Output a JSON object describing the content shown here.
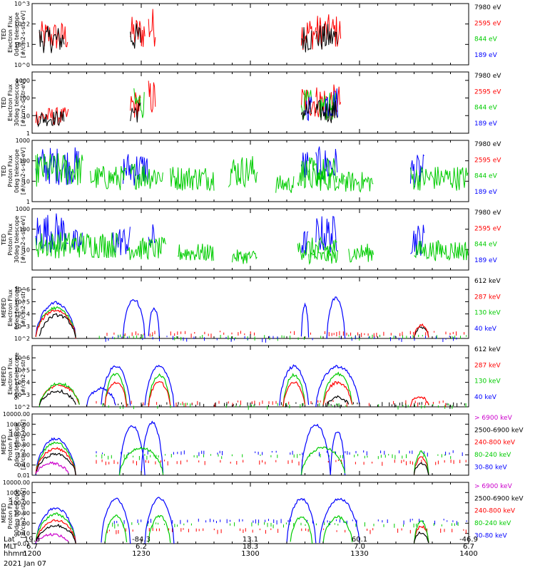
{
  "chart_data": [
    {
      "type": "line",
      "ylabel_lines": [
        "TED",
        "Electron Flux",
        "0deg telescope",
        "[#/cm2-s-str-eV]"
      ],
      "yscale": "log",
      "ylim": [
        1,
        1000
      ],
      "yticks": [
        "10^0",
        "10^1",
        "10^2",
        "10^3"
      ],
      "legend_right": [
        {
          "text": "7980 eV",
          "color": "#000000"
        },
        {
          "text": "2595 eV",
          "color": "#ff0000"
        },
        {
          "text": "844 eV",
          "color": "#00cc00"
        },
        {
          "text": "189 eV",
          "color": "#0000ff"
        }
      ],
      "series": [
        {
          "color": "#ff0000",
          "bursts": [
            [
              1202,
              1210,
              140
            ],
            [
              1227,
              1231,
              250
            ],
            [
              1232,
              1234,
              700
            ],
            [
              1314,
              1318,
              250
            ],
            [
              1318,
              1325,
              300
            ]
          ]
        },
        {
          "color": "#000000",
          "bursts": [
            [
              1202,
              1209,
              80
            ],
            [
              1227,
              1230,
              120
            ],
            [
              1314,
              1317,
              100
            ],
            [
              1318,
              1324,
              110
            ]
          ]
        }
      ]
    },
    {
      "type": "line",
      "ylabel_lines": [
        "TED",
        "Electron Flux",
        "30deg telescope",
        "[#/cm2-s-str-eV]"
      ],
      "yscale": "log",
      "ylim": [
        1,
        3000
      ],
      "yticks": [
        "1",
        "10",
        "100",
        "1000"
      ],
      "legend_right": [
        {
          "text": "7980 eV",
          "color": "#000000"
        },
        {
          "text": "2595 eV",
          "color": "#ff0000"
        },
        {
          "text": "844 eV",
          "color": "#00cc00"
        },
        {
          "text": "189 eV",
          "color": "#0000ff"
        }
      ],
      "series": [
        {
          "color": "#ff0000",
          "bursts": [
            [
              1201,
              1210,
              30
            ],
            [
              1227,
              1230,
              300
            ],
            [
              1232,
              1234,
              1200
            ],
            [
              1314,
              1318,
              600
            ],
            [
              1318,
              1325,
              600
            ]
          ]
        },
        {
          "color": "#00cc00",
          "bursts": [
            [
              1228,
              1231,
              400
            ],
            [
              1314,
              1317,
              300
            ],
            [
              1319,
              1324,
              200
            ]
          ]
        },
        {
          "color": "#0000ff",
          "bursts": [
            [
              1315,
              1317,
              200
            ],
            [
              1320,
              1324,
              500
            ]
          ]
        },
        {
          "color": "#000000",
          "bursts": [
            [
              1201,
              1209,
              20
            ],
            [
              1227,
              1230,
              80
            ],
            [
              1314,
              1317,
              80
            ],
            [
              1318,
              1324,
              80
            ]
          ]
        }
      ]
    },
    {
      "type": "line",
      "ylabel_lines": [
        "TED",
        "Proton Flux",
        "0deg telescope",
        "[#/cm2-s-str-eV]"
      ],
      "yscale": "log",
      "ylim": [
        1,
        1000
      ],
      "yticks": [
        "1",
        "10",
        "100",
        "1000"
      ],
      "legend_right": [
        {
          "text": "7980 eV",
          "color": "#000000"
        },
        {
          "text": "2595 eV",
          "color": "#ff0000"
        },
        {
          "text": "844 eV",
          "color": "#00cc00"
        },
        {
          "text": "189 eV",
          "color": "#0000ff"
        }
      ],
      "series": [
        {
          "color": "#0000ff",
          "bursts": [
            [
              1201,
              1213,
              500
            ],
            [
              1225,
              1232,
              300
            ],
            [
              1314,
              1316,
              400
            ],
            [
              1318,
              1324,
              500
            ],
            [
              1344,
              1348,
              200
            ]
          ]
        },
        {
          "color": "#00cc00",
          "bursts": [
            [
              1201,
              1214,
              250
            ],
            [
              1216,
              1226,
              60
            ],
            [
              1227,
              1236,
              100
            ],
            [
              1238,
              1250,
              60
            ],
            [
              1254,
              1262,
              200
            ],
            [
              1267,
              1272,
              20
            ],
            [
              1276,
              1286,
              50
            ],
            [
              1313,
              1324,
              150
            ],
            [
              1326,
              1334,
              30
            ],
            [
              1344,
              1360,
              60
            ]
          ]
        }
      ]
    },
    {
      "type": "line",
      "ylabel_lines": [
        "TED",
        "Proton Flux",
        "30deg telescope",
        "[#/cm2-s-str-eV]"
      ],
      "yscale": "log",
      "ylim": [
        1,
        1000
      ],
      "yticks": [
        "10",
        "100",
        "1000"
      ],
      "legend_right": [
        {
          "text": "7980 eV",
          "color": "#000000"
        },
        {
          "text": "2595 eV",
          "color": "#ff0000"
        },
        {
          "text": "844 eV",
          "color": "#00cc00"
        },
        {
          "text": "189 eV",
          "color": "#0000ff"
        }
      ],
      "series": [
        {
          "color": "#0000ff",
          "bursts": [
            [
              1201,
              1210,
              700
            ],
            [
              1211,
              1214,
              100
            ],
            [
              1222,
              1227,
              150
            ],
            [
              1232,
              1234,
              200
            ],
            [
              1314,
              1316,
              100
            ],
            [
              1318,
              1324,
              500
            ],
            [
              1344,
              1348,
              200
            ]
          ]
        },
        {
          "color": "#00cc00",
          "bursts": [
            [
              1201,
              1224,
              80
            ],
            [
              1226,
              1237,
              40
            ],
            [
              1240,
              1250,
              20
            ],
            [
              1255,
              1262,
              10
            ],
            [
              1276,
              1284,
              10
            ],
            [
              1313,
              1324,
              40
            ],
            [
              1327,
              1334,
              20
            ],
            [
              1345,
              1360,
              30
            ]
          ]
        }
      ]
    },
    {
      "type": "line",
      "ylabel_lines": [
        "MEPED",
        "Electron Flux",
        "0deg telescope",
        "[#/cm2-s-str]"
      ],
      "yscale": "log",
      "ylim": [
        100,
        10000000
      ],
      "yticks": [
        "10^2",
        "10^3",
        "10^4",
        "10^5",
        "10^6"
      ],
      "legend_right": [
        {
          "text": "612 keV",
          "color": "#000000"
        },
        {
          "text": "287 keV",
          "color": "#ff0000"
        },
        {
          "text": "130 keV",
          "color": "#00cc00"
        },
        {
          "text": "40 keV",
          "color": "#0000ff"
        }
      ],
      "floor": [
        {
          "color": "#00cc00",
          "level": 150
        },
        {
          "color": "#0000ff",
          "level": 120
        },
        {
          "color": "#ff0000",
          "level": 300
        }
      ],
      "bumps": [
        {
          "color": "#0000ff",
          "x0": 1201,
          "x1": 1212,
          "peak": 80000
        },
        {
          "color": "#00cc00",
          "x0": 1201,
          "x1": 1212,
          "peak": 30000
        },
        {
          "color": "#ff0000",
          "x0": 1201,
          "x1": 1212,
          "peak": 20000
        },
        {
          "color": "#000000",
          "x0": 1202,
          "x1": 1212,
          "peak": 8000
        },
        {
          "color": "#0000ff",
          "x0": 1225,
          "x1": 1231,
          "peak": 150000
        },
        {
          "color": "#0000ff",
          "x0": 1232,
          "x1": 1235,
          "peak": 30000
        },
        {
          "color": "#0000ff",
          "x0": 1314,
          "x1": 1316,
          "peak": 50000
        },
        {
          "color": "#0000ff",
          "x0": 1321,
          "x1": 1326,
          "peak": 200000
        },
        {
          "color": "#000000",
          "x0": 1345,
          "x1": 1349,
          "peak": 800
        },
        {
          "color": "#ff0000",
          "x0": 1345,
          "x1": 1349,
          "peak": 1200
        }
      ]
    },
    {
      "type": "line",
      "ylabel_lines": [
        "MEPED",
        "Electron Flux",
        "90deg telescope",
        "[#/cm2-s-str]"
      ],
      "yscale": "log",
      "ylim": [
        100,
        10000000
      ],
      "yticks": [
        "10^2",
        "10^3",
        "10^4",
        "10^5",
        "10^6"
      ],
      "legend_right": [
        {
          "text": "612 keV",
          "color": "#000000"
        },
        {
          "text": "287 keV",
          "color": "#ff0000"
        },
        {
          "text": "130 keV",
          "color": "#00cc00"
        },
        {
          "text": "40 keV",
          "color": "#0000ff"
        }
      ],
      "floor": [
        {
          "color": "#00cc00",
          "level": 150
        },
        {
          "color": "#000000",
          "level": 180
        },
        {
          "color": "#ff0000",
          "level": 250
        }
      ],
      "bumps": [
        {
          "color": "#ff0000",
          "x0": 1202,
          "x1": 1213,
          "peak": 6000
        },
        {
          "color": "#00cc00",
          "x0": 1202,
          "x1": 1213,
          "peak": 8000
        },
        {
          "color": "#000000",
          "x0": 1202,
          "x1": 1212,
          "peak": 2000
        },
        {
          "color": "#0000ff",
          "x0": 1215,
          "x1": 1223,
          "peak": 3000
        },
        {
          "color": "#0000ff",
          "x0": 1219,
          "x1": 1227,
          "peak": 200000
        },
        {
          "color": "#00cc00",
          "x0": 1220,
          "x1": 1226,
          "peak": 50000
        },
        {
          "color": "#ff0000",
          "x0": 1220,
          "x1": 1226,
          "peak": 10000
        },
        {
          "color": "#0000ff",
          "x0": 1231,
          "x1": 1239,
          "peak": 200000
        },
        {
          "color": "#00cc00",
          "x0": 1232,
          "x1": 1238,
          "peak": 40000
        },
        {
          "color": "#ff0000",
          "x0": 1232,
          "x1": 1238,
          "peak": 10000
        },
        {
          "color": "#0000ff",
          "x0": 1308,
          "x1": 1316,
          "peak": 200000
        },
        {
          "color": "#00cc00",
          "x0": 1309,
          "x1": 1315,
          "peak": 40000
        },
        {
          "color": "#ff0000",
          "x0": 1309,
          "x1": 1315,
          "peak": 10000
        },
        {
          "color": "#0000ff",
          "x0": 1318,
          "x1": 1330,
          "peak": 200000
        },
        {
          "color": "#00cc00",
          "x0": 1320,
          "x1": 1328,
          "peak": 50000
        },
        {
          "color": "#ff0000",
          "x0": 1320,
          "x1": 1328,
          "peak": 10000
        },
        {
          "color": "#000000",
          "x0": 1321,
          "x1": 1327,
          "peak": 600
        },
        {
          "color": "#ff0000",
          "x0": 1344,
          "x1": 1349,
          "peak": 700
        }
      ]
    },
    {
      "type": "line",
      "ylabel_lines": [
        "MEPED",
        "Proton Flux",
        "0deg telescope",
        "[#/cm2-s-str-keV]"
      ],
      "yscale": "log",
      "ylim": [
        0.01,
        10000
      ],
      "yticks": [
        "0.01",
        "0.10",
        "1.00",
        "10.00",
        "100.00",
        "1000.00",
        "10000.00"
      ],
      "legend_right": [
        {
          "text": "> 6900 keV",
          "color": "#cc00cc"
        },
        {
          "text": "2500-6900 keV",
          "color": "#000000"
        },
        {
          "text": "240-800 keV",
          "color": "#ff0000"
        },
        {
          "text": "80-240 keV",
          "color": "#00cc00"
        },
        {
          "text": "30-80 keV",
          "color": "#0000ff"
        }
      ],
      "floor": [
        {
          "color": "#0000ff",
          "level": 2.0
        },
        {
          "color": "#00cc00",
          "level": 0.9
        },
        {
          "color": "#ff0000",
          "level": 0.25
        }
      ],
      "bumps": [
        {
          "color": "#0000ff",
          "x0": 1201,
          "x1": 1212,
          "peak": 40
        },
        {
          "color": "#00cc00",
          "x0": 1201,
          "x1": 1212,
          "peak": 15
        },
        {
          "color": "#ff0000",
          "x0": 1201,
          "x1": 1212,
          "peak": 4
        },
        {
          "color": "#000000",
          "x0": 1201,
          "x1": 1212,
          "peak": 1.2
        },
        {
          "color": "#cc00cc",
          "x0": 1201,
          "x1": 1210,
          "peak": 0.15
        },
        {
          "color": "#0000ff",
          "x0": 1224,
          "x1": 1231,
          "peak": 700
        },
        {
          "color": "#0000ff",
          "x0": 1230,
          "x1": 1236,
          "peak": 1500
        },
        {
          "color": "#0000ff",
          "x0": 1314,
          "x1": 1322,
          "peak": 900
        },
        {
          "color": "#0000ff",
          "x0": 1322,
          "x1": 1326,
          "peak": 200
        },
        {
          "color": "#00cc00",
          "x0": 1224,
          "x1": 1236,
          "peak": 5
        },
        {
          "color": "#00cc00",
          "x0": 1314,
          "x1": 1326,
          "peak": 5
        },
        {
          "color": "#ff0000",
          "x0": 1345,
          "x1": 1349,
          "peak": 0.6
        },
        {
          "color": "#00cc00",
          "x0": 1345,
          "x1": 1349,
          "peak": 2
        },
        {
          "color": "#000000",
          "x0": 1345,
          "x1": 1349,
          "peak": 0.15
        }
      ]
    },
    {
      "type": "line",
      "ylabel_lines": [
        "MEPED",
        "Proton Flux",
        "90deg telescope",
        "[#/cm2-s-str-keV]"
      ],
      "yscale": "log",
      "ylim": [
        0.01,
        10000
      ],
      "yticks": [
        "0.01",
        "0.10",
        "1.00",
        "10.00",
        "100.00",
        "1000.00",
        "10000.00"
      ],
      "legend_right": [
        {
          "text": "> 6900 keV",
          "color": "#cc00cc"
        },
        {
          "text": "2500-6900 keV",
          "color": "#000000"
        },
        {
          "text": "240-800 keV",
          "color": "#ff0000"
        },
        {
          "text": "80-240 keV",
          "color": "#00cc00"
        },
        {
          "text": "30-80 keV",
          "color": "#0000ff"
        }
      ],
      "floor": [
        {
          "color": "#0000ff",
          "level": 2.0
        },
        {
          "color": "#00cc00",
          "level": 0.9
        },
        {
          "color": "#ff0000",
          "level": 0.25
        }
      ],
      "bumps": [
        {
          "color": "#0000ff",
          "x0": 1201,
          "x1": 1212,
          "peak": 30
        },
        {
          "color": "#00cc00",
          "x0": 1201,
          "x1": 1212,
          "peak": 8
        },
        {
          "color": "#ff0000",
          "x0": 1201,
          "x1": 1212,
          "peak": 2
        },
        {
          "color": "#000000",
          "x0": 1201,
          "x1": 1212,
          "peak": 0.6
        },
        {
          "color": "#cc00cc",
          "x0": 1201,
          "x1": 1210,
          "peak": 0.08
        },
        {
          "color": "#0000ff",
          "x0": 1219,
          "x1": 1227,
          "peak": 250
        },
        {
          "color": "#0000ff",
          "x0": 1231,
          "x1": 1239,
          "peak": 300
        },
        {
          "color": "#00cc00",
          "x0": 1220,
          "x1": 1226,
          "peak": 5
        },
        {
          "color": "#00cc00",
          "x0": 1232,
          "x1": 1238,
          "peak": 5
        },
        {
          "color": "#0000ff",
          "x0": 1310,
          "x1": 1318,
          "peak": 250
        },
        {
          "color": "#0000ff",
          "x0": 1319,
          "x1": 1330,
          "peak": 250
        },
        {
          "color": "#00cc00",
          "x0": 1311,
          "x1": 1317,
          "peak": 4
        },
        {
          "color": "#00cc00",
          "x0": 1320,
          "x1": 1328,
          "peak": 4
        },
        {
          "color": "#ff0000",
          "x0": 1345,
          "x1": 1349,
          "peak": 0.5
        },
        {
          "color": "#00cc00",
          "x0": 1345,
          "x1": 1349,
          "peak": 1.5
        },
        {
          "color": "#000000",
          "x0": 1345,
          "x1": 1349,
          "peak": 0.12
        }
      ]
    }
  ],
  "x_axis": {
    "xlim": [
      1200,
      1400
    ],
    "row_labels": [
      "Lat",
      "MLT",
      "hhmm"
    ],
    "columns": [
      {
        "hhmm": "1200",
        "lat": "19.6",
        "mlt": "6.7"
      },
      {
        "hhmm": "1230",
        "lat": "-84.3",
        "mlt": "6.2"
      },
      {
        "hhmm": "1300",
        "lat": "13.1",
        "mlt": "18.3"
      },
      {
        "hhmm": "1330",
        "lat": "60.1",
        "mlt": "7.0"
      },
      {
        "hhmm": "1400",
        "lat": "-46.9",
        "mlt": "6.7"
      }
    ],
    "date": "2021 Jan 07"
  }
}
